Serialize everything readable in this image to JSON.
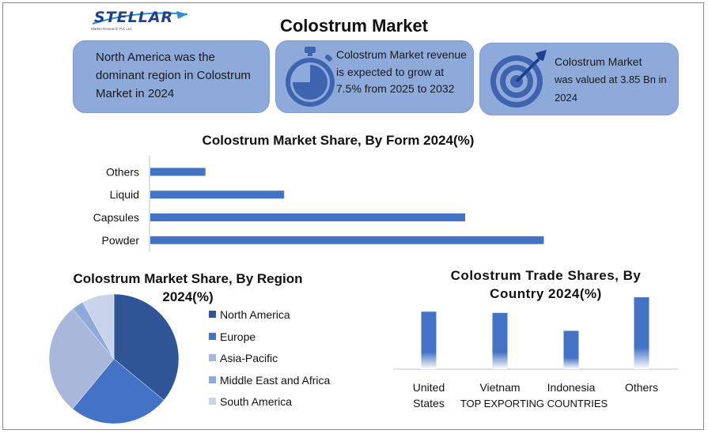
{
  "logo": {
    "word": "STELLAR",
    "tagline": "Market Research Pvt. Ltd."
  },
  "title": "Colostrum Market",
  "cards": {
    "region": {
      "text": "North America was the dominant region in Colostrum Market in 2024",
      "icon": "globe-icon"
    },
    "growth": {
      "text": "Colostrum Market revenue is expected to grow at 7.5% from 2025 to 2032",
      "icon": "stopwatch-icon"
    },
    "value": {
      "line1": "Colostrum Market",
      "line2": "was valued at 3.85 Bn in 2024",
      "icon": "target-icon"
    }
  },
  "colors": {
    "card_bg": "#8eaadb",
    "bar": "#4472c4",
    "icon": "#3e64b0"
  },
  "chart_data": [
    {
      "type": "bar",
      "orientation": "horizontal",
      "title": "Colostrum Market Share, By Form 2024(%)",
      "categories": [
        "Others",
        "Liquid",
        "Capsules",
        "Powder"
      ],
      "values": [
        7,
        17,
        40,
        50
      ],
      "xlim": [
        0,
        60
      ],
      "xlabel": "",
      "ylabel": "",
      "grid": false
    },
    {
      "type": "pie",
      "title": "Colostrum Market Share, By Region 2024(%)",
      "categories": [
        "North America",
        "Europe",
        "Asia-Pacific",
        "Middle East and Africa",
        "South America"
      ],
      "values": [
        36,
        25,
        28,
        3,
        8
      ],
      "colors": [
        "#2f5597",
        "#4472c4",
        "#a9b8da",
        "#8ea9db",
        "#c9d3ea"
      ],
      "legend": "right"
    },
    {
      "type": "bar",
      "title": "Colostrum Trade Shares, By Country 2024(%)",
      "categories": [
        "United States",
        "Vietnam",
        "Indonesia",
        "Others"
      ],
      "values": [
        24,
        23.5,
        16,
        30
      ],
      "ylim": [
        0,
        32
      ],
      "xlabel": "TOP EXPORTING COUNTRIES",
      "ylabel": "",
      "grid": false
    }
  ]
}
